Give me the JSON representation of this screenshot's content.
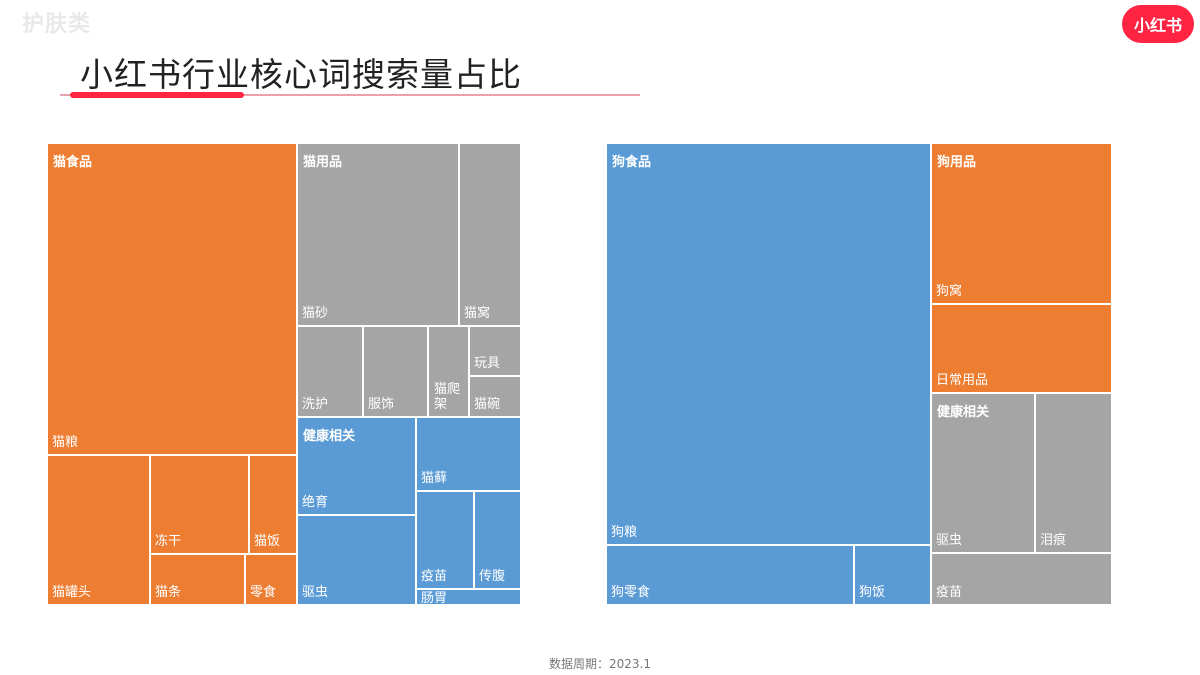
{
  "watermark": "护肤类",
  "logo_text": "小红书",
  "title": "小红书行业核心词搜索量占比",
  "footer": "数据周期：2023.1",
  "colors": {
    "orange": "#ed7d31",
    "gray": "#a5a5a5",
    "blue": "#5b9bd5",
    "accent": "#ff2442"
  },
  "chart_data": [
    {
      "type": "treemap",
      "title": "",
      "groups": [
        {
          "name": "猫食品",
          "color": "orange",
          "items": [
            {
              "name": "猫粮",
              "value": 77.4
            },
            {
              "name": "猫罐头",
              "value": 14.6
            },
            {
              "name": "冻干",
              "value": 9.6
            },
            {
              "name": "猫饭",
              "value": 4.6
            },
            {
              "name": "猫条",
              "value": 4.4
            },
            {
              "name": "零食",
              "value": 2.4
            }
          ]
        },
        {
          "name": "猫用品",
          "color": "gray",
          "items": [
            {
              "name": "猫砂",
              "value": 29.0
            },
            {
              "name": "猫窝",
              "value": 10.9
            },
            {
              "name": "洗护",
              "value": 5.8
            },
            {
              "name": "服饰",
              "value": 5.8
            },
            {
              "name": "猫爬架",
              "value": 3.6
            },
            {
              "name": "玩具",
              "value": 2.0
            },
            {
              "name": "猫碗",
              "value": 1.6
            }
          ]
        },
        {
          "name": "健康相关",
          "color": "blue",
          "items": [
            {
              "name": "绝育",
              "value": 11.8
            },
            {
              "name": "驱虫",
              "value": 10.2
            },
            {
              "name": "猫藓",
              "value": 7.5
            },
            {
              "name": "疫苗",
              "value": 5.3
            },
            {
              "name": "传腹",
              "value": 4.1
            },
            {
              "name": "肠胃",
              "value": 0.9
            }
          ]
        }
      ]
    },
    {
      "type": "treemap",
      "title": "",
      "groups": [
        {
          "name": "狗食品",
          "color": "blue",
          "items": [
            {
              "name": "狗粮",
              "value": 137.0
            },
            {
              "name": "狗零食",
              "value": 15.8
            },
            {
              "name": "狗饭",
              "value": 4.9
            }
          ]
        },
        {
          "name": "狗用品",
          "color": "orange",
          "items": [
            {
              "name": "狗窝",
              "value": 21.4
            },
            {
              "name": "日常用品",
              "value": 12.8
            }
          ]
        },
        {
          "name": "健康相关",
          "color": "gray",
          "items": [
            {
              "name": "驱虫",
              "value": 16.2
            },
            {
              "name": "泪痕",
              "value": 12.3
            },
            {
              "name": "疫苗",
              "value": 7.5
            }
          ]
        }
      ]
    }
  ]
}
